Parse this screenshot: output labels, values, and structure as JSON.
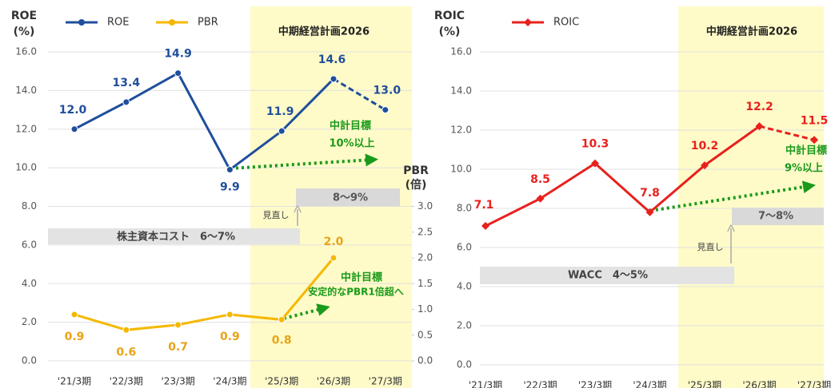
{
  "chart_data": [
    {
      "type": "line",
      "ylabel": [
        "ROE",
        "(%)"
      ],
      "y2label": [
        "PBR",
        "(倍)"
      ],
      "categories": [
        "'21/3期",
        "'22/3期",
        "'23/3期",
        "'24/3期",
        "'25/3期",
        "'26/3期",
        "'27/3期"
      ],
      "series": [
        {
          "name": "ROE",
          "color": "#1f4e9c",
          "marker": "circle",
          "axis": "y",
          "dashed_from": 5,
          "values": [
            12.0,
            13.4,
            14.9,
            9.9,
            11.9,
            14.6,
            13.0
          ],
          "value_labels": [
            "12.0",
            "13.4",
            "14.9",
            "9.9",
            "11.9",
            "14.6",
            "13.0"
          ]
        },
        {
          "name": "PBR",
          "color": "#f5b800",
          "marker": "circle",
          "axis": "y2",
          "values": [
            0.9,
            0.6,
            0.7,
            0.9,
            0.8,
            2.0,
            null
          ],
          "value_labels": [
            "0.9",
            "0.6",
            "0.7",
            "0.9",
            "0.8",
            "2.0",
            null
          ]
        }
      ],
      "ylim": [
        0,
        16
      ],
      "yticks": [
        {
          "value": 0,
          "label": "0.0"
        },
        {
          "value": 2,
          "label": "2.0"
        },
        {
          "value": 4,
          "label": "4.0"
        },
        {
          "value": 6,
          "label": "6.0"
        },
        {
          "value": 8,
          "label": "8.0"
        },
        {
          "value": 10,
          "label": "10.0"
        },
        {
          "value": 12,
          "label": "12.0"
        },
        {
          "value": 14,
          "label": "14.0"
        },
        {
          "value": 16,
          "label": "16.0"
        }
      ],
      "y2lim": [
        0,
        6
      ],
      "y2ticks": [
        {
          "value": 0,
          "label": "0.0"
        },
        0.5,
        {
          "value": 1,
          "label": "1.0"
        },
        1.5,
        {
          "value": 2,
          "label": "2.0"
        },
        2.5,
        {
          "value": 3,
          "label": "3.0"
        }
      ],
      "grid": true,
      "annotations": [
        "中期経営計画2026",
        "中計目標",
        "10%以上",
        "8～9%",
        "見直し",
        "株主資本コスト　6～7%",
        "中計目標",
        "安定的なPBR1倍超へ"
      ]
    },
    {
      "type": "line",
      "ylabel": [
        "ROIC",
        "(%)"
      ],
      "categories": [
        "'21/3期",
        "'22/3期",
        "'23/3期",
        "'24/3期",
        "'25/3期",
        "'26/3期",
        "'27/3期"
      ],
      "series": [
        {
          "name": "ROIC",
          "color": "#e8211d",
          "marker": "diamond",
          "axis": "y",
          "dashed_from": 5,
          "values": [
            7.1,
            8.5,
            10.3,
            7.8,
            10.2,
            12.2,
            11.5
          ]
        }
      ],
      "ylim": [
        0,
        16
      ],
      "yticks": [
        {
          "value": 0,
          "label": "0.0"
        },
        {
          "value": 2,
          "label": "2.0"
        },
        {
          "value": 4,
          "label": "4.0"
        },
        {
          "value": 6,
          "label": "6.0"
        },
        {
          "value": 8,
          "label": "8.0"
        },
        {
          "value": 10,
          "label": "10.0"
        },
        {
          "value": 12,
          "label": "12.0"
        },
        {
          "value": 14,
          "label": "14.0"
        },
        {
          "value": 16,
          "label": "16.0"
        }
      ],
      "grid": true,
      "annotations": [
        "中期経営計画2026",
        "中計目標",
        "9%以上",
        "7～8%",
        "見直し",
        "WACC　4～5%"
      ]
    }
  ]
}
